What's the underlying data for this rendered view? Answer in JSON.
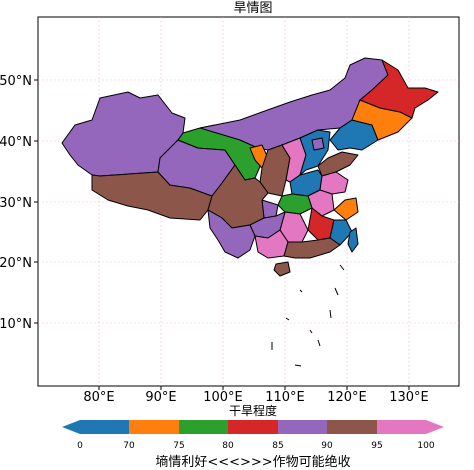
{
  "map": {
    "title": "旱情图",
    "lon_ticks": [
      "80°E",
      "90°E",
      "100°E",
      "110°E",
      "120°E",
      "130°E"
    ],
    "lat_ticks": [
      "10°N",
      "20°N",
      "30°N",
      "40°N",
      "50°N"
    ],
    "extent": {
      "lon": [
        73,
        137
      ],
      "lat": [
        1,
        60
      ]
    },
    "gridlines": "dotted pink"
  },
  "colorbar": {
    "label": "干旱程度",
    "ticks": [
      "0",
      "70",
      "75",
      "80",
      "85",
      "90",
      "95",
      "100"
    ],
    "colors": [
      "#1f77b4",
      "#ff7f0e",
      "#2ca02c",
      "#d62728",
      "#9467bd",
      "#8c564b",
      "#e377c2"
    ],
    "extend": "both"
  },
  "note": "墒情利好<<<>>>作物可能绝收"
}
